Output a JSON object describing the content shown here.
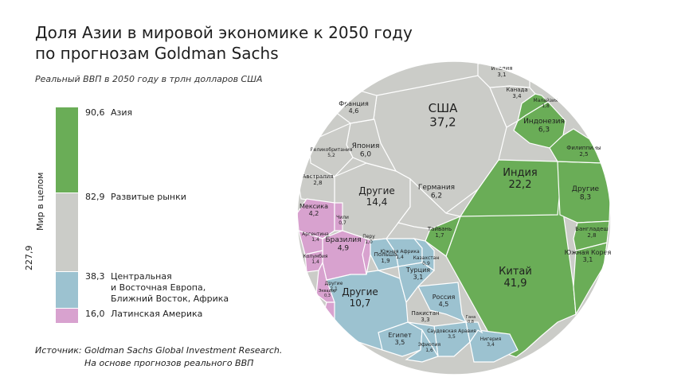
{
  "title_line1": "Доля Азии в мировой экономике к 2050 году",
  "title_line2": "по прогнозам Goldman Sachs",
  "subtitle": "Реальный ВВП в 2050 году в трлн долларов США",
  "world_label": "Мир в целом",
  "world_total": "227,9",
  "source_line1": "Источник: Goldman Sachs Global Investment Research.",
  "source_line2": "На основе прогнозов реального ВВП",
  "colors": {
    "asia": "#6aad57",
    "developed": "#cbccc8",
    "ceemea": "#9cc2d0",
    "latam": "#d8a2cf"
  },
  "chart_data": {
    "type": "voronoi-treemap",
    "unit": "трлн долларов США",
    "regions": [
      {
        "name": "Азия",
        "value": 90.6,
        "label": "90,6",
        "countries": [
          {
            "name": "Китай",
            "value": 41.9,
            "label": "41,9"
          },
          {
            "name": "Индия",
            "value": 22.2,
            "label": "22,2"
          },
          {
            "name": "Индонезия",
            "value": 6.3,
            "label": "6,3"
          },
          {
            "name": "Другие",
            "value": 8.3,
            "label": "8,3"
          },
          {
            "name": "Южная Корея",
            "value": 3.1,
            "label": "3,1"
          },
          {
            "name": "Бангладеш",
            "value": 2.8,
            "label": "2,8"
          },
          {
            "name": "Филиппины",
            "value": 2.5,
            "label": "2,5"
          },
          {
            "name": "Малайзия",
            "value": 1.8,
            "label": "1,8"
          },
          {
            "name": "Тайвань",
            "value": 1.7,
            "label": "1,7"
          }
        ]
      },
      {
        "name": "Развитые рынки",
        "value": 82.9,
        "label": "82,9",
        "countries": [
          {
            "name": "США",
            "value": 37.2,
            "label": "37,2"
          },
          {
            "name": "Другие",
            "value": 14.4,
            "label": "14,4"
          },
          {
            "name": "Германия",
            "value": 6.2,
            "label": "6,2"
          },
          {
            "name": "Япония",
            "value": 6.0,
            "label": "6,0"
          },
          {
            "name": "Великобритания",
            "value": 5.2,
            "label": "5,2"
          },
          {
            "name": "Франция",
            "value": 4.6,
            "label": "4,6"
          },
          {
            "name": "Канада",
            "value": 3.4,
            "label": "3,4"
          },
          {
            "name": "Италия",
            "value": 3.1,
            "label": "3,1"
          },
          {
            "name": "Австралия",
            "value": 2.8,
            "label": "2,8"
          }
        ]
      },
      {
        "name": "Центральная и Восточная Европа, Ближний Восток, Африка",
        "value": 38.3,
        "label": "38,3",
        "label_lines": [
          "Центральная",
          "и Восточная Европа,",
          "Ближний Восток, Африка"
        ],
        "countries": [
          {
            "name": "Другие",
            "value": 10.7,
            "label": "10,7"
          },
          {
            "name": "Россия",
            "value": 4.5,
            "label": "4,5"
          },
          {
            "name": "Египет",
            "value": 3.5,
            "label": "3,5"
          },
          {
            "name": "Саудовская Аравия",
            "value": 3.5,
            "label": "3,5"
          },
          {
            "name": "Нигерия",
            "value": 3.4,
            "label": "3,4"
          },
          {
            "name": "Пакистан",
            "value": 3.3,
            "label": "3,3"
          },
          {
            "name": "Турция",
            "value": 3.1,
            "label": "3,1"
          },
          {
            "name": "Польша",
            "value": 1.9,
            "label": "1,9"
          },
          {
            "name": "Эфиопия",
            "value": 1.6,
            "label": "1,6"
          },
          {
            "name": "Южная Африка",
            "value": 1.4,
            "label": "1,4"
          },
          {
            "name": "Казахстан",
            "value": 0.9,
            "label": "0,9"
          },
          {
            "name": "Гана",
            "value": 0.8,
            "label": "0,8"
          }
        ]
      },
      {
        "name": "Латинская Америка",
        "value": 16.0,
        "label": "16,0",
        "countries": [
          {
            "name": "Бразилия",
            "value": 4.9,
            "label": "4,9"
          },
          {
            "name": "Мексика",
            "value": 4.2,
            "label": "4,2"
          },
          {
            "name": "Другие",
            "value": 2.1,
            "label": "2,1"
          },
          {
            "name": "Аргентина",
            "value": 1.4,
            "label": "1,4"
          },
          {
            "name": "Колумбия",
            "value": 1.4,
            "label": "1,4"
          },
          {
            "name": "Перу",
            "value": 1.0,
            "label": "1,0"
          },
          {
            "name": "Чили",
            "value": 0.7,
            "label": "0,7"
          },
          {
            "name": "Эквадор",
            "value": 0.3,
            "label": "0,3"
          }
        ]
      }
    ]
  }
}
